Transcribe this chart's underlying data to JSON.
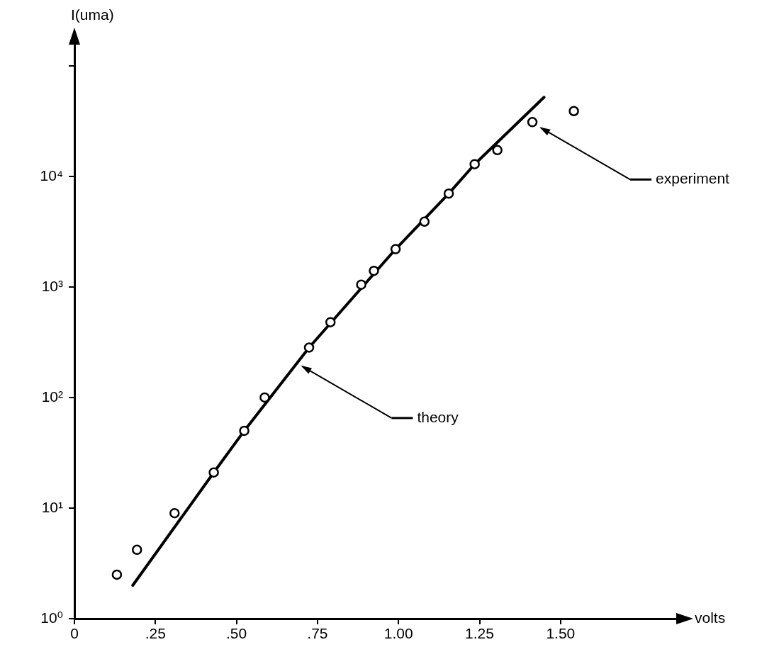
{
  "chart_data": {
    "type": "scatter",
    "xlabel": "volts",
    "ylabel": "I(uma)",
    "log": "y",
    "grid": false,
    "legend": "right",
    "xlim": [
      0,
      1.87
    ],
    "xticks": [
      {
        "value": 0,
        "label": "0"
      },
      {
        "value": 0.25,
        "label": ".25"
      },
      {
        "value": 0.5,
        "label": ".50"
      },
      {
        "value": 0.75,
        "label": ".75"
      },
      {
        "value": 1,
        "label": "1.00"
      },
      {
        "value": 1.25,
        "label": "1.25"
      },
      {
        "value": 1.5,
        "label": "1.50"
      }
    ],
    "ylim": [
      1,
      170000
    ],
    "yticks": [
      {
        "value": 1,
        "label": "10⁰"
      },
      {
        "value": 10,
        "label": "10¹"
      },
      {
        "value": 100,
        "label": "10²"
      },
      {
        "value": 1000,
        "label": "10³"
      },
      {
        "value": 10000,
        "label": "10⁴"
      },
      {
        "value": 100000,
        "label": null
      }
    ],
    "series": [
      {
        "name": "experiment",
        "marker": "circle",
        "color": "#000000",
        "x": [
          0.131,
          0.193,
          0.309,
          0.43,
          0.524,
          0.587,
          0.724,
          0.79,
          0.885,
          0.924,
          0.991,
          1.08,
          1.155,
          1.235,
          1.305,
          1.413,
          1.541
        ],
        "values": [
          2.5,
          4.2,
          9,
          21,
          50,
          100,
          283,
          480,
          1050,
          1400,
          2200,
          3900,
          7000,
          12900,
          17300,
          31000,
          39000
        ]
      },
      {
        "name": "theory",
        "type": "line",
        "marker": "none",
        "line_style": "solid",
        "color": "#000000",
        "x": [
          0.18,
          0.43,
          0.524,
          0.724,
          0.991,
          1.155,
          1.235,
          1.449
        ],
        "values": [
          2,
          21,
          50,
          283,
          2200,
          7000,
          12900,
          52000
        ]
      }
    ]
  }
}
